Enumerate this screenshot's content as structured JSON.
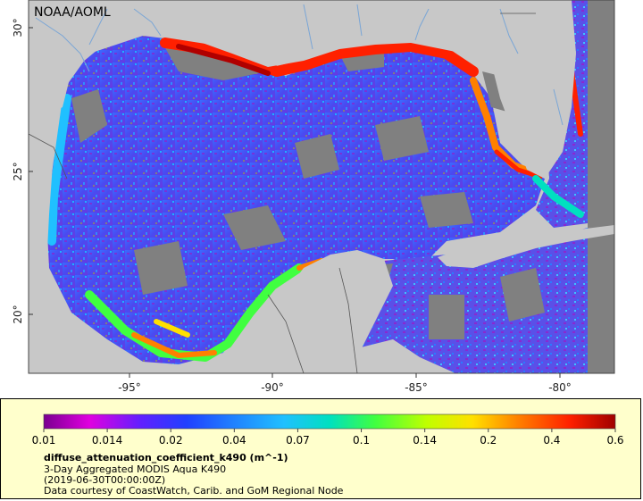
{
  "map": {
    "credit": "NOAA/AOML",
    "lon_ticks": [
      "-95°",
      "-90°",
      "-85°",
      "-80°"
    ],
    "lat_ticks": [
      "30°",
      "25°",
      "20°"
    ],
    "colors": {
      "land": "#c8c8c8",
      "no_data": "#808080",
      "rivers": "#7aa6d6",
      "borders": "#555555"
    }
  },
  "legend": {
    "ticks": [
      "0.01",
      "0.014",
      "0.02",
      "0.04",
      "0.07",
      "0.1",
      "0.14",
      "0.2",
      "0.4",
      "0.6"
    ],
    "variable": "diffuse_attenuation_coefficient_k490 (m^-1)",
    "line1": "3-Day Aggregated MODIS Aqua K490",
    "line2": "(2019-06-30T00:00:00Z)",
    "line3": "Data courtesy of CoastWatch, Carib. and GoM Regional Node",
    "colorscale": [
      "#7a0090",
      "#e000e0",
      "#6020ff",
      "#2040ff",
      "#2080ff",
      "#20c0ff",
      "#00e0c0",
      "#40ff40",
      "#c0ff00",
      "#ffe000",
      "#ff8000",
      "#ff2000",
      "#a00000"
    ]
  }
}
